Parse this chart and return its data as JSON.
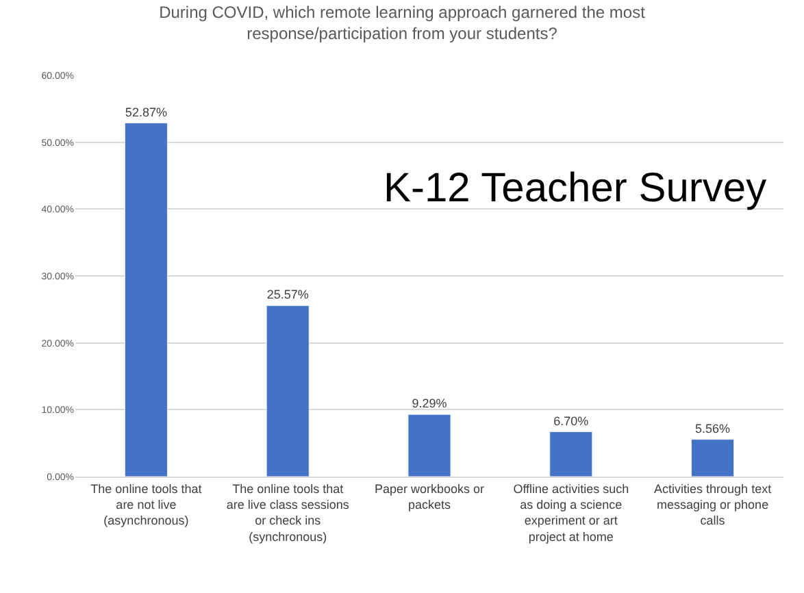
{
  "chart_data": {
    "type": "bar",
    "title": "During COVID, which remote learning approach garnered the most\nresponse/participation from your students?",
    "categories": [
      "The online tools that\nare not live\n(asynchronous)",
      "The online tools that\nare live class sessions\nor check ins\n(synchronous)",
      "Paper workbooks or\npackets",
      "Offline activities such\nas doing a science\nexperiment or art\nproject at home",
      "Activities through text\nmessaging or phone\ncalls"
    ],
    "values": [
      52.87,
      25.57,
      9.29,
      6.7,
      5.56
    ],
    "value_labels": [
      "52.87%",
      "25.57%",
      "9.29%",
      "6.70%",
      "5.56%"
    ],
    "color": "#4472c4",
    "ylim": [
      0,
      60
    ],
    "yticks": [
      {
        "value": 0,
        "label": "0.00%"
      },
      {
        "value": 10,
        "label": "10.00%"
      },
      {
        "value": 20,
        "label": "20.00%"
      },
      {
        "value": 30,
        "label": "30.00%"
      },
      {
        "value": 40,
        "label": "40.00%"
      },
      {
        "value": 50,
        "label": "50.00%"
      },
      {
        "value": 60,
        "label": "60.00%"
      }
    ],
    "grid": "y",
    "legend": false,
    "annotations": [
      "K-12 Teacher Survey"
    ]
  }
}
